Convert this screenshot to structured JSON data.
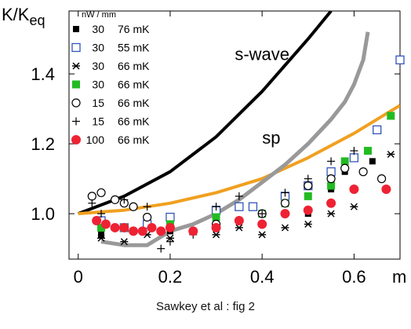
{
  "chart_data": {
    "type": "scatter",
    "ylabel_main": "K/K",
    "ylabel_sub": "eq",
    "xlabel": "m",
    "xlim": [
      -0.02,
      0.7
    ],
    "ylim": [
      0.87,
      1.58
    ],
    "x_ticks": [
      {
        "value": 0,
        "label": "0"
      },
      {
        "value": 0.2,
        "label": "0.2"
      },
      {
        "value": 0.4,
        "label": "0.4"
      },
      {
        "value": 0.6,
        "label": "0.6"
      }
    ],
    "y_ticks": [
      {
        "value": 1.0,
        "label": "1.0"
      },
      {
        "value": 1.2,
        "label": "1.2"
      },
      {
        "value": 1.4,
        "label": "1.4"
      }
    ],
    "legend_header": "nW / mm",
    "legend": [
      {
        "power": "30",
        "temp": "76 mK",
        "marker": "filled-square-black",
        "color": "#000000"
      },
      {
        "power": "30",
        "temp": "55 mK",
        "marker": "open-square",
        "color": "#3355bb"
      },
      {
        "power": "30",
        "temp": "66 mK",
        "marker": "asterisk",
        "color": "#000000"
      },
      {
        "power": "30",
        "temp": "66 mK",
        "marker": "filled-square-green",
        "color": "#22bb22"
      },
      {
        "power": "15",
        "temp": "66 mK",
        "marker": "open-circle",
        "color": "#000000"
      },
      {
        "power": "15",
        "temp": "66 mK",
        "marker": "plus",
        "color": "#000000"
      },
      {
        "power": "100",
        "temp": "66 mK",
        "marker": "filled-circle-red",
        "color": "#ee2233"
      }
    ],
    "curves": [
      {
        "label": "s-wave",
        "color": "#000000",
        "points": [
          [
            0,
            1.0
          ],
          [
            0.1,
            1.05
          ],
          [
            0.2,
            1.12
          ],
          [
            0.3,
            1.22
          ],
          [
            0.4,
            1.35
          ],
          [
            0.5,
            1.5
          ],
          [
            0.55,
            1.58
          ]
        ]
      },
      {
        "label": "sp",
        "color": "#f0a020",
        "points": [
          [
            0,
            1.0
          ],
          [
            0.1,
            1.01
          ],
          [
            0.2,
            1.03
          ],
          [
            0.3,
            1.06
          ],
          [
            0.4,
            1.1
          ],
          [
            0.5,
            1.16
          ],
          [
            0.6,
            1.23
          ],
          [
            0.7,
            1.31
          ]
        ]
      },
      {
        "label": "",
        "color": "#999999",
        "points": [
          [
            0.05,
            0.92
          ],
          [
            0.1,
            0.91
          ],
          [
            0.15,
            0.91
          ],
          [
            0.2,
            0.95
          ],
          [
            0.25,
            0.97
          ],
          [
            0.3,
            1.0
          ],
          [
            0.35,
            1.04
          ],
          [
            0.4,
            1.09
          ],
          [
            0.45,
            1.14
          ],
          [
            0.5,
            1.2
          ],
          [
            0.55,
            1.27
          ],
          [
            0.58,
            1.32
          ],
          [
            0.6,
            1.37
          ],
          [
            0.62,
            1.44
          ],
          [
            0.63,
            1.52
          ]
        ]
      }
    ],
    "series": [
      {
        "marker": "filled-square-black",
        "points": [
          [
            0.05,
            0.94
          ],
          [
            0.1,
            0.96
          ],
          [
            0.2,
            0.95
          ],
          [
            0.3,
            0.96
          ],
          [
            0.4,
            0.97
          ],
          [
            0.5,
            1.0
          ],
          [
            0.55,
            1.07
          ],
          [
            0.58,
            1.12
          ],
          [
            0.64,
            1.15
          ]
        ]
      },
      {
        "marker": "open-square",
        "points": [
          [
            0.05,
            0.98
          ],
          [
            0.1,
            0.96
          ],
          [
            0.15,
            0.97
          ],
          [
            0.2,
            0.99
          ],
          [
            0.3,
            1.01
          ],
          [
            0.35,
            1.02
          ],
          [
            0.38,
            1.02
          ],
          [
            0.45,
            1.05
          ],
          [
            0.5,
            1.08
          ],
          [
            0.55,
            1.12
          ],
          [
            0.6,
            1.16
          ],
          [
            0.65,
            1.24
          ],
          [
            0.7,
            1.44
          ]
        ]
      },
      {
        "marker": "asterisk",
        "points": [
          [
            0.05,
            0.93
          ],
          [
            0.1,
            0.92
          ],
          [
            0.15,
            0.94
          ],
          [
            0.2,
            0.93
          ],
          [
            0.25,
            0.95
          ],
          [
            0.3,
            0.94
          ],
          [
            0.35,
            0.96
          ],
          [
            0.4,
            0.94
          ],
          [
            0.45,
            0.96
          ],
          [
            0.5,
            0.97
          ],
          [
            0.55,
            1.0
          ],
          [
            0.6,
            1.02
          ],
          [
            0.68,
            1.17
          ]
        ]
      },
      {
        "marker": "filled-square-green",
        "points": [
          [
            0.05,
            0.96
          ],
          [
            0.1,
            0.96
          ],
          [
            0.2,
            0.97
          ],
          [
            0.3,
            0.99
          ],
          [
            0.4,
            1.0
          ],
          [
            0.45,
            1.03
          ],
          [
            0.5,
            1.05
          ],
          [
            0.55,
            1.08
          ],
          [
            0.58,
            1.15
          ],
          [
            0.63,
            1.18
          ],
          [
            0.68,
            1.28
          ]
        ]
      },
      {
        "marker": "open-circle",
        "points": [
          [
            0.03,
            1.05
          ],
          [
            0.05,
            1.06
          ],
          [
            0.08,
            1.04
          ],
          [
            0.1,
            1.03
          ],
          [
            0.12,
            1.02
          ],
          [
            0.15,
            0.99
          ],
          [
            0.2,
            0.96
          ],
          [
            0.3,
            0.97
          ],
          [
            0.4,
            1.0
          ],
          [
            0.45,
            1.03
          ],
          [
            0.5,
            1.08
          ],
          [
            0.55,
            1.1
          ],
          [
            0.58,
            1.13
          ],
          [
            0.62,
            1.12
          ],
          [
            0.66,
            1.1
          ]
        ]
      },
      {
        "marker": "plus",
        "points": [
          [
            0.03,
            1.03
          ],
          [
            0.05,
            1.0
          ],
          [
            0.1,
            1.04
          ],
          [
            0.15,
            1.02
          ],
          [
            0.18,
            0.9
          ],
          [
            0.2,
            0.92
          ],
          [
            0.25,
            0.94
          ],
          [
            0.3,
            1.02
          ],
          [
            0.35,
            1.05
          ],
          [
            0.4,
            1.0
          ],
          [
            0.45,
            1.06
          ],
          [
            0.5,
            1.1
          ],
          [
            0.55,
            1.15
          ],
          [
            0.6,
            1.18
          ]
        ]
      },
      {
        "marker": "filled-circle-red",
        "points": [
          [
            0.04,
            0.98
          ],
          [
            0.06,
            0.97
          ],
          [
            0.08,
            0.96
          ],
          [
            0.1,
            0.96
          ],
          [
            0.12,
            0.95
          ],
          [
            0.14,
            0.95
          ],
          [
            0.16,
            0.96
          ],
          [
            0.18,
            0.95
          ],
          [
            0.2,
            0.96
          ],
          [
            0.25,
            0.95
          ],
          [
            0.3,
            0.96
          ],
          [
            0.35,
            0.98
          ],
          [
            0.4,
            0.97
          ],
          [
            0.45,
            1.0
          ],
          [
            0.5,
            1.01
          ],
          [
            0.55,
            1.03
          ],
          [
            0.6,
            1.07
          ],
          [
            0.67,
            1.07
          ]
        ]
      }
    ],
    "curve_labels": [
      {
        "text": "s-wave",
        "x": 0.4,
        "y": 1.44
      },
      {
        "text": "sp",
        "x": 0.42,
        "y": 1.2
      }
    ],
    "caption": "Sawkey et al : fig 2",
    "grid": false,
    "legend_placement": "top-left"
  }
}
